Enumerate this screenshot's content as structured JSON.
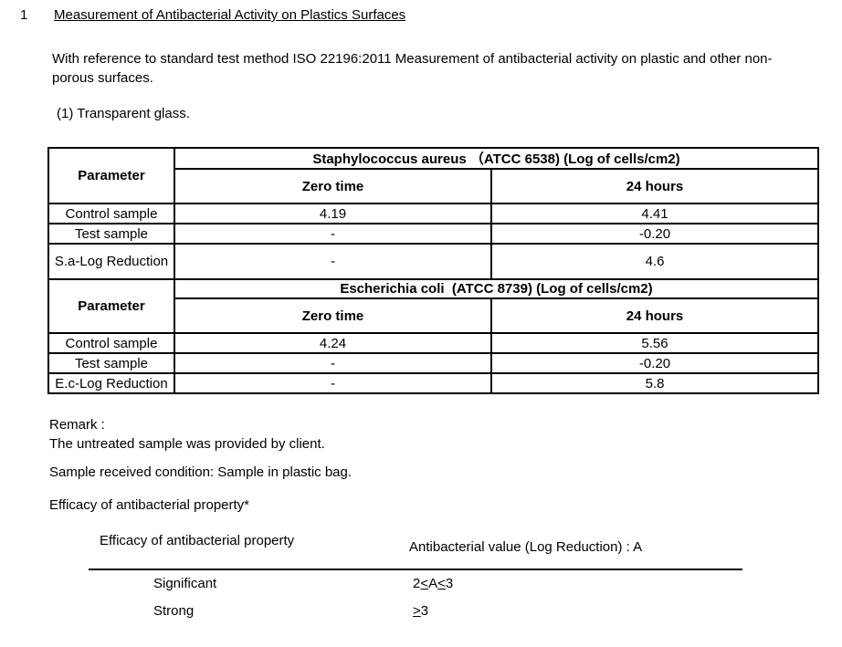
{
  "page": {
    "section_number": "1",
    "title": "Measurement of Antibacterial Activity on Plastics Surfaces",
    "intro": "With reference to standard test method ISO 22196:2011 Measurement of antibacterial activity on plastic and other non-porous surfaces.",
    "item_label": "(1) Transparent glass."
  },
  "results_table": {
    "sections": [
      {
        "species_header": "Staphylococcus aureus （ATCC 6538) (Log of cells/cm2)",
        "parameter_header": "Parameter",
        "col_headers": [
          "Zero time",
          "24 hours"
        ],
        "rows": [
          {
            "label": "Control sample",
            "zero_time": "4.19",
            "hours_24": "4.41"
          },
          {
            "label": "Test sample",
            "zero_time": "-",
            "hours_24": "-0.20"
          },
          {
            "label": "S.a-Log Reduction",
            "zero_time": "-",
            "hours_24": "4.6"
          }
        ]
      },
      {
        "species_header": "Escherichia coli  (ATCC 8739) (Log of cells/cm2)",
        "parameter_header": "Parameter",
        "col_headers": [
          "Zero time",
          "24 hours"
        ],
        "rows": [
          {
            "label": "Control sample",
            "zero_time": "4.24",
            "hours_24": "5.56"
          },
          {
            "label": "Test sample",
            "zero_time": "-",
            "hours_24": "-0.20"
          },
          {
            "label": "E.c-Log Reduction",
            "zero_time": "-",
            "hours_24": "5.8"
          }
        ]
      }
    ]
  },
  "remark": {
    "label": "Remark :",
    "text": "The untreated sample was provided by client.",
    "sample_condition": "Sample received condition: Sample in plastic bag.",
    "efficacy_note": "Efficacy of antibacterial property*"
  },
  "efficacy_table": {
    "header_property": "Efficacy of antibacterial property",
    "header_value": "Antibacterial value (Log Reduction) : A",
    "rows": [
      {
        "label": "Significant",
        "parts": {
          "a": "2",
          "b": "<",
          "c": "A",
          "d": "<",
          "e": "3"
        }
      },
      {
        "label": "Strong",
        "parts": {
          "a": ">",
          "b": "3"
        }
      }
    ]
  }
}
